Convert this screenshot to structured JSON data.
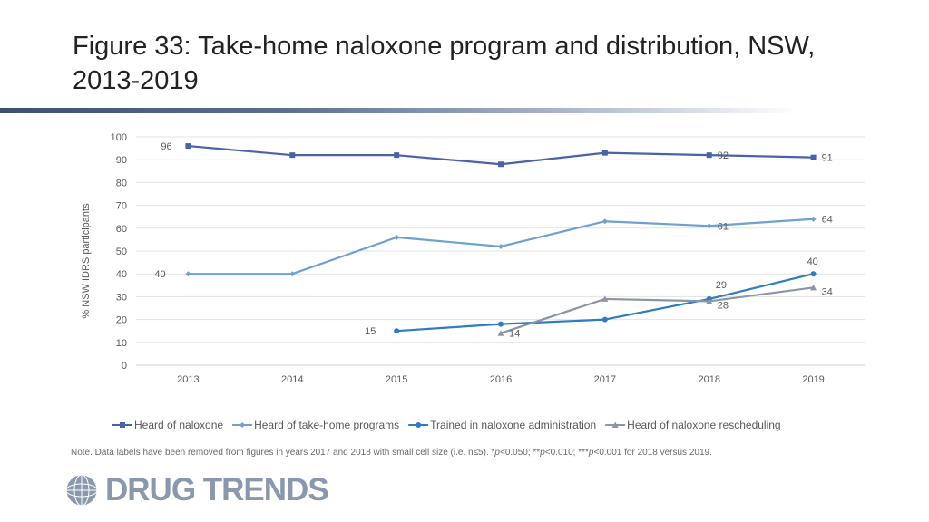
{
  "page": {
    "title": "Figure 33: Take-home naloxone program and distribution, NSW, 2013-2019",
    "note": "Note. Data labels have been removed from figures in years 2017 and 2018 with small cell size (i.e. n≤5).  *p<0.050; **p<0.010; ***p<0.001 for 2018 versus 2019.",
    "logo_text": "DRUG TRENDS"
  },
  "chart_data": {
    "type": "line",
    "title": "",
    "xlabel": "",
    "ylabel": "% NSW IDRS participants",
    "categories": [
      "2013",
      "2014",
      "2015",
      "2016",
      "2017",
      "2018",
      "2019"
    ],
    "ylim": [
      0,
      100
    ],
    "yticks": [
      0,
      10,
      20,
      30,
      40,
      50,
      60,
      70,
      80,
      90,
      100
    ],
    "grid": true,
    "legend": "bottom",
    "series": [
      {
        "name": "Heard of naloxone",
        "color": "#4a62a8",
        "marker": "square",
        "values": [
          96,
          92,
          92,
          88,
          93,
          92,
          91
        ],
        "labels": [
          {
            "index": 0,
            "text": "96"
          },
          {
            "index": 5,
            "text": "92"
          },
          {
            "index": 6,
            "text": "91"
          }
        ]
      },
      {
        "name": "Heard of take-home programs",
        "color": "#6ea0d0",
        "marker": "diamond",
        "values": [
          40,
          40,
          56,
          52,
          63,
          61,
          64
        ],
        "labels": [
          {
            "index": 0,
            "text": "40"
          },
          {
            "index": 5,
            "text": "61"
          },
          {
            "index": 6,
            "text": "64"
          }
        ]
      },
      {
        "name": "Trained in naloxone administration",
        "color": "#2e7bc6",
        "marker": "circle",
        "values": [
          null,
          null,
          15,
          18,
          20,
          29,
          40
        ],
        "labels": [
          {
            "index": 2,
            "text": "15"
          },
          {
            "index": 5,
            "text": "29"
          },
          {
            "index": 6,
            "text": "40"
          }
        ]
      },
      {
        "name": "Heard of naloxone rescheduling",
        "color": "#8a96a8",
        "marker": "triangle",
        "values": [
          null,
          null,
          null,
          14,
          29,
          28,
          34
        ],
        "labels": [
          {
            "index": 3,
            "text": "14"
          },
          {
            "index": 5,
            "text": "28"
          },
          {
            "index": 6,
            "text": "34"
          }
        ]
      }
    ]
  }
}
